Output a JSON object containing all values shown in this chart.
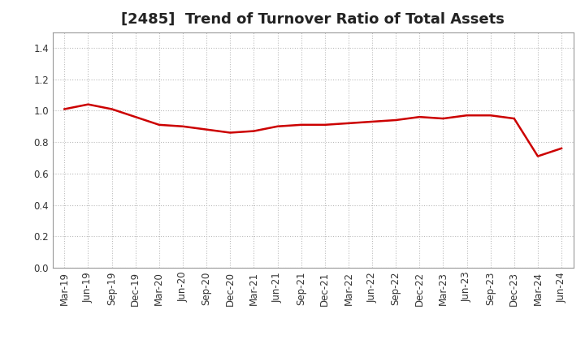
{
  "title": "[2485]  Trend of Turnover Ratio of Total Assets",
  "x_labels": [
    "Mar-19",
    "Jun-19",
    "Sep-19",
    "Dec-19",
    "Mar-20",
    "Jun-20",
    "Sep-20",
    "Dec-20",
    "Mar-21",
    "Jun-21",
    "Sep-21",
    "Dec-21",
    "Mar-22",
    "Jun-22",
    "Sep-22",
    "Dec-22",
    "Mar-23",
    "Jun-23",
    "Sep-23",
    "Dec-23",
    "Mar-24",
    "Jun-24"
  ],
  "y_values": [
    1.01,
    1.04,
    1.01,
    0.96,
    0.91,
    0.9,
    0.88,
    0.86,
    0.87,
    0.9,
    0.91,
    0.91,
    0.92,
    0.93,
    0.94,
    0.96,
    0.95,
    0.97,
    0.97,
    0.95,
    0.71,
    0.76
  ],
  "line_color": "#cc0000",
  "line_width": 1.8,
  "ylim": [
    0.0,
    1.5
  ],
  "yticks": [
    0.0,
    0.2,
    0.4,
    0.6,
    0.8,
    1.0,
    1.2,
    1.4
  ],
  "grid_color": "#bbbbbb",
  "grid_linestyle": ":",
  "bg_color": "#ffffff",
  "plot_bg_color": "#ffffff",
  "title_fontsize": 13,
  "tick_fontsize": 8.5,
  "title_color": "#222222"
}
